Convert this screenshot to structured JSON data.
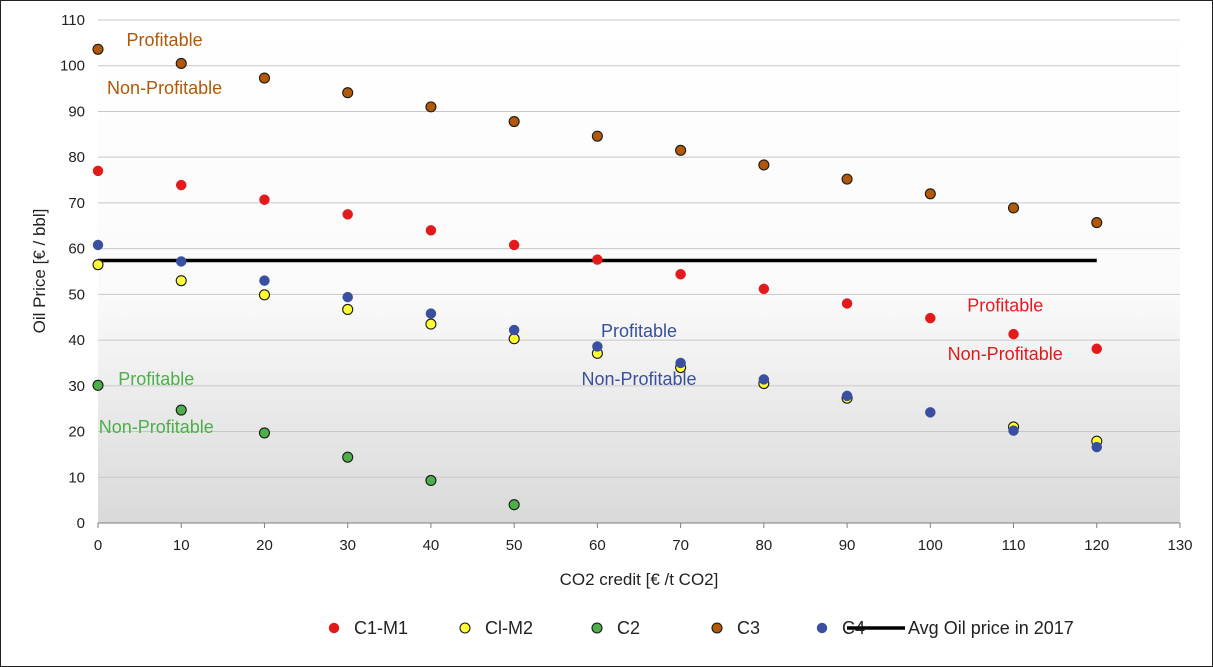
{
  "chart_data": {
    "type": "scatter",
    "title": "",
    "xlabel": "CO2 credit [€ /t CO2]",
    "ylabel": "Oil Price [€ / bbl]",
    "xlim": [
      0,
      130
    ],
    "ylim": [
      0,
      110
    ],
    "x_ticks": [
      0,
      10,
      20,
      30,
      40,
      50,
      60,
      70,
      80,
      90,
      100,
      110,
      120,
      130
    ],
    "y_ticks": [
      0,
      10,
      20,
      30,
      40,
      50,
      60,
      70,
      80,
      90,
      100,
      110
    ],
    "grid": "horizontal",
    "legend_position": "bottom",
    "series": [
      {
        "name": "C1-M1",
        "color": "#e31a1c",
        "outline": false,
        "x": [
          0,
          10,
          20,
          30,
          40,
          50,
          60,
          70,
          80,
          90,
          100,
          110,
          120
        ],
        "y": [
          77,
          73.9,
          70.7,
          67.5,
          64,
          60.8,
          57.6,
          54.4,
          51.2,
          48,
          44.8,
          41.3,
          38.1
        ]
      },
      {
        "name": "Cl-M2",
        "color": "#ffff33",
        "outline": true,
        "x": [
          0,
          10,
          20,
          30,
          40,
          50,
          60,
          70,
          80,
          90,
          110,
          120
        ],
        "y": [
          56.5,
          53,
          49.9,
          46.7,
          43.5,
          40.3,
          37.1,
          34,
          30.5,
          27.3,
          21,
          17.9
        ]
      },
      {
        "name": "C2",
        "color": "#4daf4a",
        "outline": true,
        "x": [
          0,
          10,
          20,
          30,
          40,
          50
        ],
        "y": [
          30.1,
          24.7,
          19.7,
          14.4,
          9.3,
          4
        ]
      },
      {
        "name": "C3",
        "color": "#b35806",
        "outline": true,
        "x": [
          0,
          10,
          20,
          30,
          40,
          50,
          60,
          70,
          80,
          90,
          100,
          110,
          120
        ],
        "y": [
          103.6,
          100.5,
          97.3,
          94.1,
          91,
          87.8,
          84.6,
          81.5,
          78.3,
          75.2,
          72,
          68.9,
          65.7
        ]
      },
      {
        "name": "C4",
        "color": "#3a4fa0",
        "outline": false,
        "x": [
          0,
          10,
          20,
          30,
          40,
          50,
          60,
          70,
          80,
          90,
          100,
          110,
          120
        ],
        "y": [
          60.8,
          57.2,
          53,
          49.4,
          45.8,
          42.2,
          38.6,
          35,
          31.4,
          27.8,
          24.2,
          20.2,
          16.6
        ]
      }
    ],
    "reference_line": {
      "name": "Avg Oil price in 2017",
      "y": 57.4,
      "x_range": [
        0,
        120
      ],
      "color": "#000000"
    },
    "annotations": [
      {
        "text": "Profitable",
        "color": "#b35806",
        "x": 8,
        "y": 104.3
      },
      {
        "text": "Non-Profitable",
        "color": "#b35806",
        "x": 8,
        "y": 93.8
      },
      {
        "text": "Profitable",
        "color": "#3a4fa0",
        "x": 65,
        "y": 40.7
      },
      {
        "text": "Non-Profitable",
        "color": "#3a4fa0",
        "x": 65,
        "y": 30.2
      },
      {
        "text": "Profitable",
        "color": "#e31a1c",
        "x": 109,
        "y": 46.2
      },
      {
        "text": "Non-Profitable",
        "color": "#e31a1c",
        "x": 109,
        "y": 35.7
      },
      {
        "text": "Profitable",
        "color": "#4daf4a",
        "x": 7,
        "y": 30.2
      },
      {
        "text": "Non-Profitable",
        "color": "#4daf4a",
        "x": 7,
        "y": 19.7
      }
    ]
  }
}
